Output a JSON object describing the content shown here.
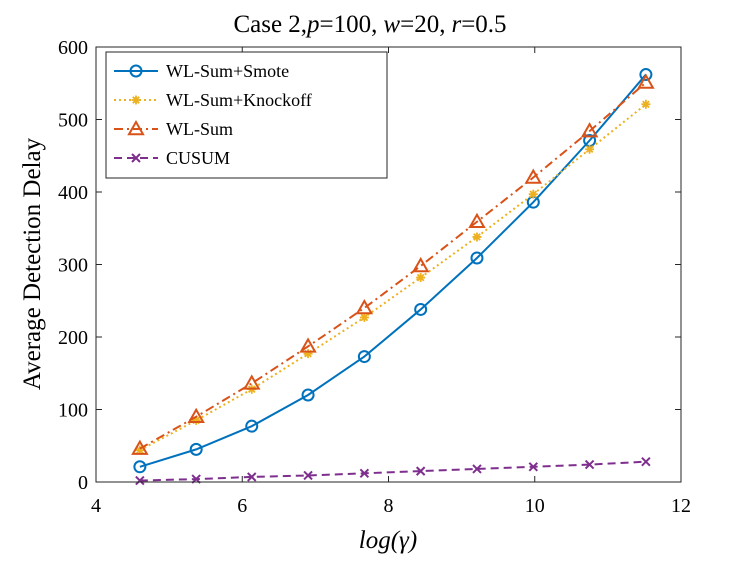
{
  "chart_data": {
    "type": "line",
    "title": {
      "prefix": "Case 2,",
      "p_symbol": "p",
      "p_value": "=100,",
      "w_symbol": "w",
      "w_value": "=20,",
      "r_symbol": "r",
      "r_value": "=0.5"
    },
    "xlabel": "log(γ)",
    "ylabel": "Average Detection Delay",
    "xlim": [
      4,
      12
    ],
    "ylim": [
      0,
      600
    ],
    "x_ticks": [
      4,
      6,
      8,
      10,
      12
    ],
    "y_ticks": [
      0,
      100,
      200,
      300,
      400,
      500,
      600
    ],
    "x": [
      4.6,
      5.37,
      6.13,
      6.9,
      7.67,
      8.44,
      9.21,
      9.98,
      10.75,
      11.52
    ],
    "series": [
      {
        "name": "WL-Sum+Smote",
        "color": "#0072BD",
        "dash": "solid",
        "marker": "circle",
        "values": [
          21,
          45,
          77,
          120,
          173,
          238,
          309,
          386,
          471,
          562
        ]
      },
      {
        "name": "WL-Sum+Knockoff",
        "color": "#EDB120",
        "dash": "dotted",
        "marker": "asterisk",
        "values": [
          44,
          85,
          128,
          177,
          227,
          282,
          338,
          397,
          459,
          521
        ]
      },
      {
        "name": "WL-Sum",
        "color": "#D95319",
        "dash": "dashdot",
        "marker": "triangle",
        "values": [
          46,
          90,
          136,
          187,
          240,
          298,
          359,
          420,
          484,
          551
        ]
      },
      {
        "name": "CUSUM",
        "color": "#7E2F8E",
        "dash": "dashed",
        "marker": "x",
        "values": [
          2,
          4,
          7,
          9,
          12,
          15,
          18,
          21,
          24,
          28
        ]
      }
    ],
    "legend_position": "top-left",
    "grid": false
  }
}
